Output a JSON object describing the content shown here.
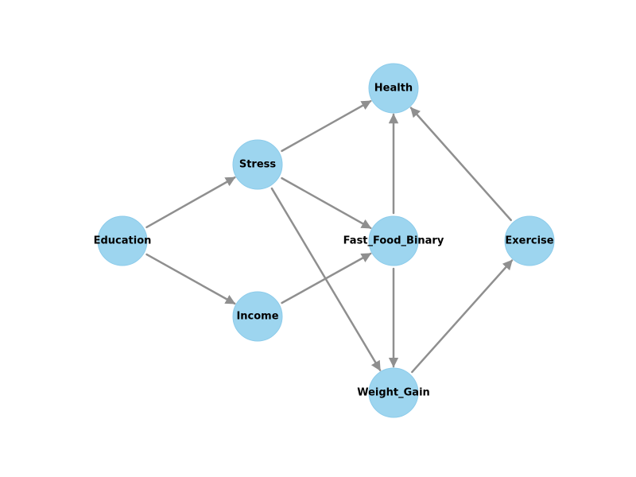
{
  "diagram": {
    "type": "directed-graph",
    "colors": {
      "node_fill": "#9dd5ef",
      "edge": "#8f8f8f",
      "label": "#000000",
      "background": "#ffffff"
    },
    "nodes": {
      "education": "Education",
      "stress": "Stress",
      "income": "Income",
      "health": "Health",
      "fast_food": "Fast_Food_Binary",
      "weight_gain": "Weight_Gain",
      "exercise": "Exercise"
    },
    "edges": [
      {
        "from": "Education",
        "to": "Stress"
      },
      {
        "from": "Education",
        "to": "Income"
      },
      {
        "from": "Stress",
        "to": "Health"
      },
      {
        "from": "Stress",
        "to": "Fast_Food_Binary"
      },
      {
        "from": "Stress",
        "to": "Weight_Gain"
      },
      {
        "from": "Income",
        "to": "Fast_Food_Binary"
      },
      {
        "from": "Fast_Food_Binary",
        "to": "Health"
      },
      {
        "from": "Fast_Food_Binary",
        "to": "Weight_Gain"
      },
      {
        "from": "Weight_Gain",
        "to": "Exercise"
      },
      {
        "from": "Exercise",
        "to": "Health"
      }
    ]
  }
}
